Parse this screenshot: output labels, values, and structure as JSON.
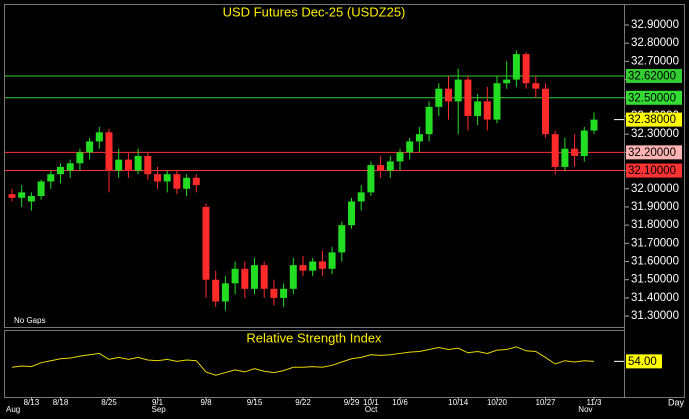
{
  "chart_data": [
    {
      "type": "candlestick",
      "title": "USD Futures Dec-25 (USDZ25)",
      "annotation": "No Gaps",
      "interval": "Day",
      "categories": [
        null,
        null,
        "8/13",
        null,
        null,
        "8/18",
        null,
        null,
        null,
        null,
        "8/25",
        null,
        null,
        null,
        null,
        "9/1",
        null,
        null,
        null,
        null,
        "9/8",
        null,
        null,
        null,
        null,
        "9/15",
        null,
        null,
        null,
        null,
        "9/22",
        null,
        null,
        null,
        null,
        "9/29",
        null,
        "10/1",
        null,
        null,
        "10/6",
        null,
        null,
        null,
        null,
        null,
        "10/14",
        null,
        null,
        null,
        "10/20",
        null,
        null,
        null,
        null,
        "10/27",
        null,
        null,
        null,
        null,
        "11/3"
      ],
      "months": [
        "Aug",
        null,
        null,
        null,
        null,
        null,
        null,
        null,
        null,
        null,
        null,
        null,
        null,
        null,
        null,
        "Sep",
        null,
        null,
        null,
        null,
        null,
        null,
        null,
        null,
        null,
        null,
        null,
        null,
        null,
        null,
        null,
        null,
        null,
        null,
        null,
        null,
        null,
        "Oct",
        null,
        null,
        null,
        null,
        null,
        null,
        null,
        null,
        null,
        null,
        null,
        null,
        null,
        null,
        null,
        null,
        null,
        null,
        null,
        null,
        null,
        "Nov",
        null
      ],
      "open": [
        31.97,
        31.95,
        31.93,
        31.96,
        32.04,
        32.08,
        32.1,
        32.14,
        32.2,
        32.26,
        32.31,
        32.1,
        32.16,
        32.1,
        32.18,
        32.08,
        32.04,
        32.08,
        32.0,
        32.06,
        31.9,
        31.5,
        31.38,
        31.48,
        31.56,
        31.45,
        31.58,
        31.45,
        31.4,
        31.45,
        31.58,
        31.55,
        31.6,
        31.56,
        31.65,
        31.8,
        31.93,
        31.98,
        32.13,
        32.1,
        32.15,
        32.2,
        32.26,
        32.3,
        32.45,
        32.55,
        32.48,
        32.6,
        32.4,
        32.48,
        32.38,
        32.58,
        32.6,
        32.74,
        32.58,
        32.55,
        32.3,
        32.12,
        32.22,
        32.18,
        32.32
      ],
      "high": [
        32.0,
        32.02,
        31.98,
        32.05,
        32.1,
        32.14,
        32.16,
        32.22,
        32.28,
        32.34,
        32.33,
        32.22,
        32.2,
        32.22,
        32.2,
        32.12,
        32.1,
        32.1,
        32.08,
        32.08,
        31.92,
        31.55,
        31.52,
        31.6,
        31.6,
        31.62,
        31.6,
        31.5,
        31.48,
        31.62,
        31.63,
        31.62,
        31.66,
        31.68,
        31.82,
        31.95,
        32.02,
        32.15,
        32.18,
        32.18,
        32.22,
        32.28,
        32.34,
        32.48,
        32.58,
        32.62,
        32.66,
        32.62,
        32.52,
        32.56,
        32.62,
        32.7,
        32.76,
        32.75,
        32.62,
        32.58,
        32.32,
        32.28,
        32.3,
        32.34,
        32.42
      ],
      "low": [
        31.93,
        31.9,
        31.88,
        31.94,
        32.0,
        32.03,
        32.06,
        32.1,
        32.16,
        32.22,
        31.98,
        32.06,
        32.06,
        32.08,
        32.05,
        32.0,
        31.98,
        31.97,
        31.96,
        31.98,
        31.4,
        31.35,
        31.33,
        31.42,
        31.4,
        31.42,
        31.4,
        31.36,
        31.35,
        31.42,
        31.52,
        31.52,
        31.52,
        31.53,
        31.6,
        31.78,
        31.88,
        31.96,
        32.06,
        32.06,
        32.1,
        32.16,
        32.2,
        32.26,
        32.4,
        32.38,
        32.3,
        32.32,
        32.35,
        32.32,
        32.36,
        32.55,
        32.56,
        32.55,
        32.5,
        32.28,
        32.08,
        32.1,
        32.12,
        32.15,
        32.3
      ],
      "close": [
        31.95,
        31.98,
        31.96,
        32.04,
        32.08,
        32.12,
        32.14,
        32.2,
        32.26,
        32.31,
        32.1,
        32.16,
        32.1,
        32.18,
        32.08,
        32.04,
        32.08,
        32.0,
        32.06,
        32.02,
        31.5,
        31.38,
        31.48,
        31.56,
        31.45,
        31.58,
        31.45,
        31.4,
        31.45,
        31.58,
        31.55,
        31.6,
        31.56,
        31.65,
        31.8,
        31.93,
        31.98,
        32.13,
        32.1,
        32.15,
        32.2,
        32.26,
        32.3,
        32.45,
        32.55,
        32.48,
        32.6,
        32.4,
        32.48,
        32.38,
        32.58,
        32.6,
        32.74,
        32.58,
        32.55,
        32.3,
        32.12,
        32.22,
        32.18,
        32.32,
        32.38
      ],
      "up_color": "#22dd22",
      "down_color": "#ff2a2a",
      "ylim": [
        31.24,
        33.01
      ],
      "yticks": [
        {
          "value": 31.3,
          "label": "31.30000"
        },
        {
          "value": 31.4,
          "label": "31.40000"
        },
        {
          "value": 31.5,
          "label": "31.50000"
        },
        {
          "value": 31.6,
          "label": "31.60000"
        },
        {
          "value": 31.7,
          "label": "31.70000"
        },
        {
          "value": 31.8,
          "label": "31.80000"
        },
        {
          "value": 31.9,
          "label": "31.90000"
        },
        {
          "value": 32.0,
          "label": "32.00000"
        },
        {
          "value": 32.1,
          "label": "32.10000"
        },
        {
          "value": 32.2,
          "label": "32.20000"
        },
        {
          "value": 32.3,
          "label": "32.30000"
        },
        {
          "value": 32.4,
          "label": "32.40000"
        },
        {
          "value": 32.5,
          "label": "32.50000"
        },
        {
          "value": 32.6,
          "label": "32.60000"
        },
        {
          "value": 32.7,
          "label": "32.70000"
        },
        {
          "value": 32.8,
          "label": "32.80000"
        },
        {
          "value": 32.9,
          "label": "32.90000"
        }
      ],
      "levels": [
        {
          "value": 32.62,
          "label": "32.62000",
          "color": "#33cc33",
          "box_color": "#33cc33"
        },
        {
          "value": 32.5,
          "label": "32.50000",
          "color": "#33cc33",
          "box_color": "#33dd33"
        },
        {
          "value": 32.2,
          "label": "32.20000",
          "color": "#ff3333",
          "box_color": "#ffb3b3"
        },
        {
          "value": 32.1,
          "label": "32.10000",
          "color": "#ff3333",
          "box_color": "#ff3333"
        }
      ],
      "last_price": {
        "value": 32.38,
        "label": "32.38000",
        "box_color": "#ffff00"
      }
    },
    {
      "type": "line",
      "title": "Relative Strength Index",
      "color": "#e8d800",
      "ylim": [
        0,
        100
      ],
      "values": [
        45,
        47,
        46,
        52,
        55,
        58,
        59,
        62,
        64,
        66,
        57,
        60,
        57,
        60,
        56,
        55,
        57,
        54,
        56,
        55,
        38,
        33,
        37,
        41,
        38,
        43,
        39,
        37,
        40,
        45,
        45,
        46,
        45,
        48,
        53,
        58,
        60,
        64,
        63,
        64,
        66,
        68,
        69,
        72,
        75,
        72,
        74,
        67,
        69,
        66,
        71,
        72,
        76,
        70,
        69,
        60,
        50,
        55,
        53,
        55,
        54
      ],
      "value_labels": [
        null,
        null,
        null,
        null,
        null,
        null,
        null,
        null,
        null,
        null,
        null,
        null,
        null,
        null,
        null,
        null,
        null,
        null,
        null,
        null,
        null,
        null,
        null,
        null,
        null,
        null,
        null,
        null,
        null,
        null,
        null,
        null,
        null,
        null,
        null,
        null,
        null,
        null,
        null,
        null,
        null,
        null,
        null,
        null,
        null,
        null,
        null,
        null,
        null,
        null,
        null,
        null,
        null,
        null,
        null,
        null,
        null,
        null,
        null,
        null,
        "54.00"
      ],
      "label_color": "#ffff00"
    }
  ]
}
